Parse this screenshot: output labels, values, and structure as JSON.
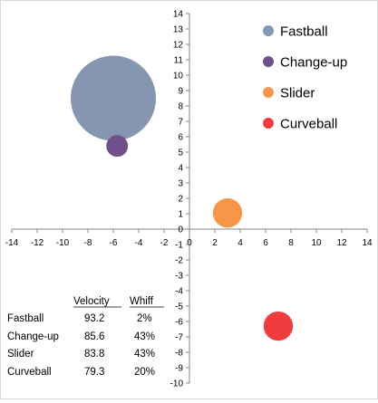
{
  "chart_data": {
    "type": "bubble",
    "xlim": [
      -14,
      14
    ],
    "ylim": [
      -10,
      14
    ],
    "x_tick_step": 2,
    "y_tick_step": 1,
    "axes_cross_at_origin": true,
    "grid": false,
    "legend_position": "top-right",
    "series": [
      {
        "name": "Fastball",
        "x": -6,
        "y": 8.5,
        "size": 93.2,
        "color": "#8496b0"
      },
      {
        "name": "Change-up",
        "x": -5.7,
        "y": 5.4,
        "size": 6,
        "color": "#6f4f8c"
      },
      {
        "name": "Slider",
        "x": 3,
        "y": 1.05,
        "size": 11,
        "color": "#f79646"
      },
      {
        "name": "Curveball",
        "x": 7,
        "y": -6.3,
        "size": 11,
        "color": "#f03c3c"
      }
    ],
    "table": {
      "columns": [
        "Velocity",
        "Whiff"
      ],
      "rows": [
        {
          "label": "Fastball",
          "velocity": "93.2",
          "whiff": "2%"
        },
        {
          "label": "Change-up",
          "velocity": "85.6",
          "whiff": "43%"
        },
        {
          "label": "Slider",
          "velocity": "83.8",
          "whiff": "43%"
        },
        {
          "label": "Curveball",
          "velocity": "79.3",
          "whiff": "20%"
        }
      ]
    }
  }
}
